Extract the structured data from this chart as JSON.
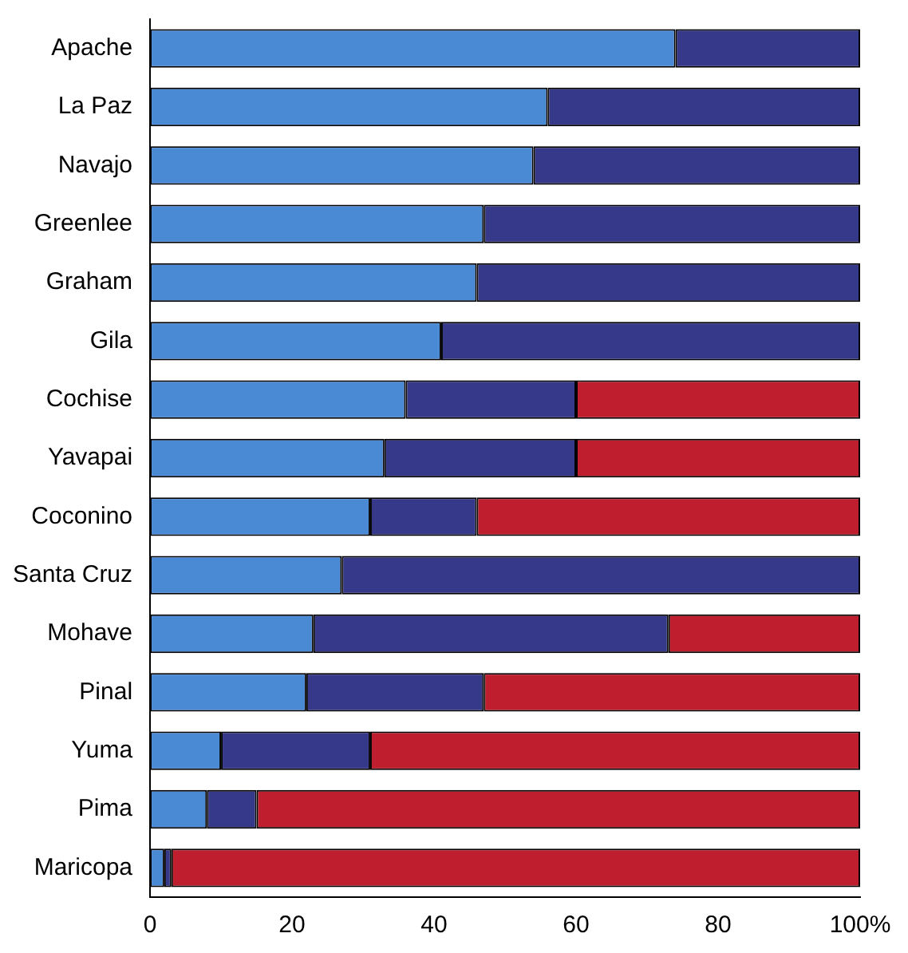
{
  "chart_data": {
    "type": "bar",
    "orientation": "horizontal",
    "stacked": true,
    "legend": false,
    "grid": false,
    "categories": [
      "Apache",
      "La Paz",
      "Navajo",
      "Greenlee",
      "Graham",
      "Gila",
      "Cochise",
      "Yavapai",
      "Coconino",
      "Santa Cruz",
      "Mohave",
      "Pinal",
      "Yuma",
      "Pima",
      "Maricopa"
    ],
    "series": [
      {
        "color": "#4a8ad4",
        "values": [
          74,
          56,
          54,
          47,
          46,
          41,
          36,
          33,
          31,
          27,
          23,
          22,
          10,
          8,
          2
        ]
      },
      {
        "color": "#363889",
        "values": [
          26,
          44,
          46,
          53,
          54,
          59,
          24,
          27,
          15,
          73,
          50,
          25,
          21,
          7,
          1
        ]
      },
      {
        "color": "#be1e2d",
        "values": [
          null,
          null,
          null,
          null,
          null,
          null,
          40,
          40,
          54,
          null,
          27,
          53,
          69,
          85,
          97
        ]
      }
    ],
    "xlim": [
      0,
      100
    ],
    "xticks": [
      0,
      20,
      40,
      60,
      80,
      {
        "value": 100,
        "label": "100%"
      }
    ]
  }
}
